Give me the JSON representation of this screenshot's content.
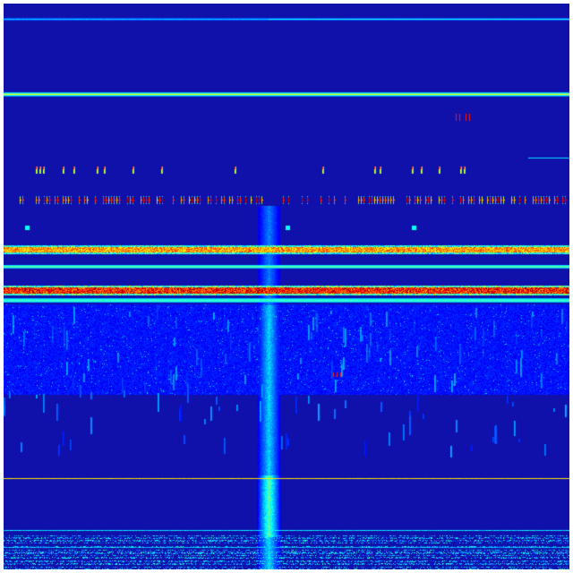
{
  "image": {
    "kind": "spectrogram",
    "colormap": "jet",
    "colors": {
      "background": "#ffffff",
      "low": "#10109c",
      "mid": "#00ffff",
      "high": "#ffff00",
      "peak": "#cc0000"
    }
  }
}
